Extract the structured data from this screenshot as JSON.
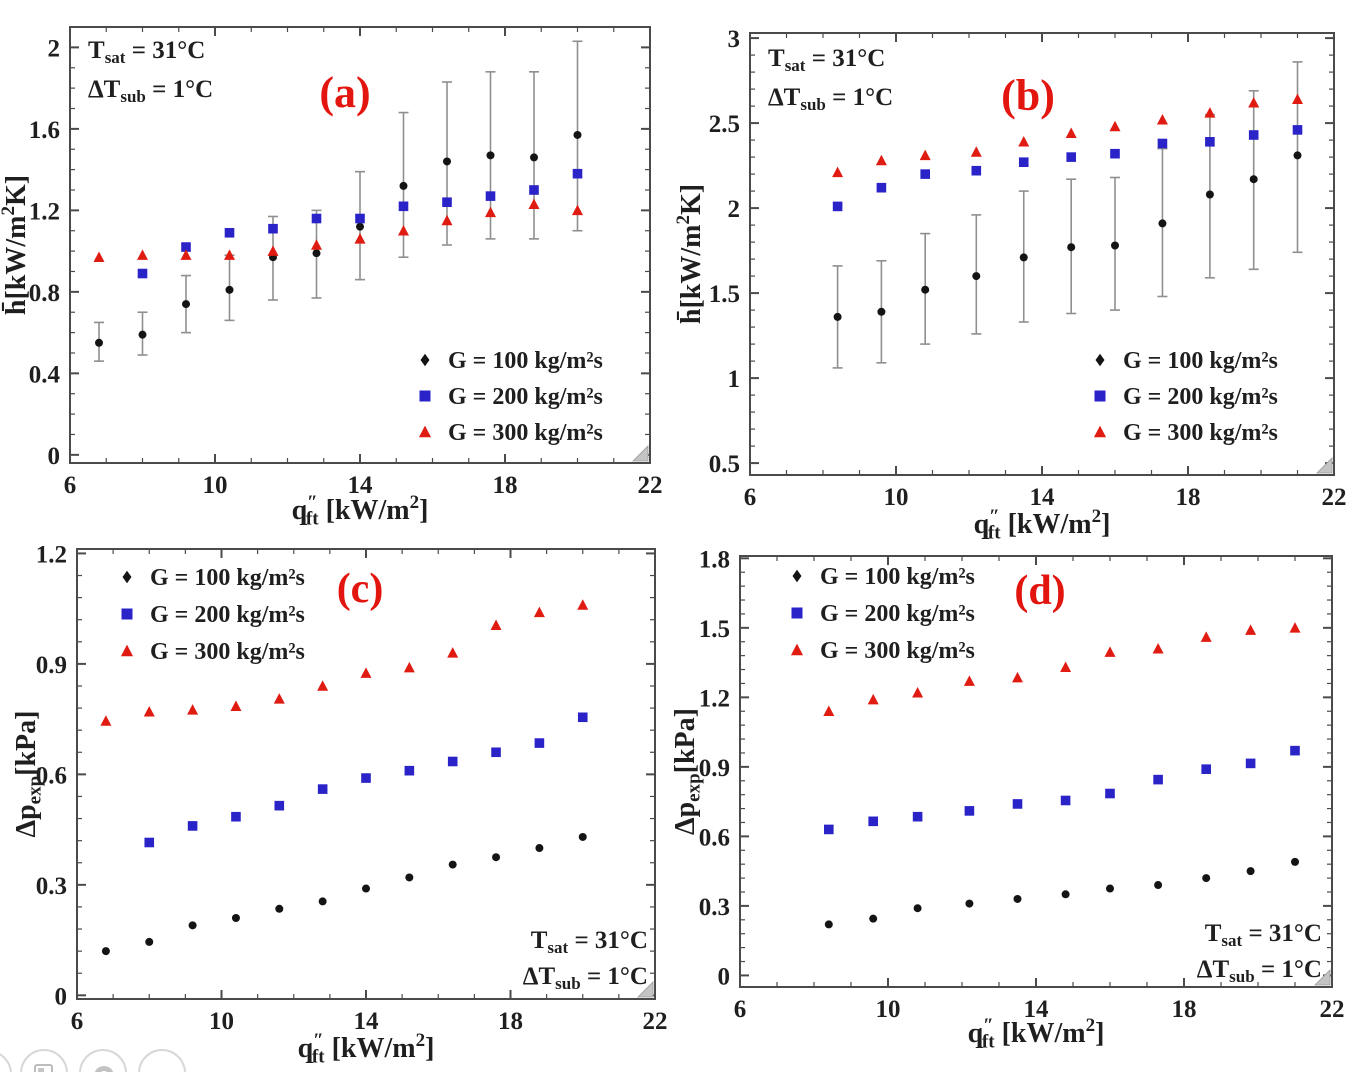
{
  "page": {
    "background": "#ffffff"
  },
  "colors": {
    "axis": "#4a4a4a",
    "text": "#1f1f1f",
    "panel_label": "#e3150f",
    "error_bar": "#8f8f8f",
    "g100": "#141414",
    "g200": "#2a23c8",
    "g300": "#e01b12",
    "corner_triangle_fill": "#c4c4c4",
    "corner_triangle_edge": "#9a9a9a"
  },
  "overlay_toolbar": {
    "buttons": [
      {
        "name": "partial-button"
      },
      {
        "name": "camera-button"
      },
      {
        "name": "arc-button"
      },
      {
        "name": "blank-button"
      }
    ]
  },
  "chart_data": [
    {
      "id": "a",
      "type": "scatter",
      "panel_label": "(a)",
      "annotations": [
        "T_(sat) = 31°C",
        "ΔT_(sub) = 1°C"
      ],
      "annotation_pos": "top-left",
      "xlabel": "q^{″}_(ft) [kW/m^{2}]",
      "ylabel": "h̄[kW/m^{2}K]",
      "xlim": [
        6,
        22
      ],
      "ylim": [
        -0.04,
        2.1
      ],
      "grid": false,
      "legend_pos": "bottom-right",
      "xticks": {
        "values": [
          6,
          10,
          14,
          18,
          22
        ],
        "labels": [
          "6",
          "10",
          "14",
          "18",
          "22"
        ],
        "minor_step": 1
      },
      "yticks": {
        "values": [
          0,
          0.4,
          0.8,
          1.2,
          1.6,
          2
        ],
        "labels": [
          "0",
          "0.4",
          "0.8",
          "1.2",
          "1.6",
          "2"
        ],
        "minor_step": 0.1
      },
      "series": [
        {
          "name": "G = 100 kg/m²s",
          "marker": "diamond",
          "color": "#141414",
          "x": [
            6.8,
            8.0,
            9.2,
            10.4,
            11.6,
            12.8,
            14.0,
            15.2,
            16.4,
            17.6,
            18.8,
            20.0
          ],
          "y": [
            0.55,
            0.59,
            0.74,
            0.81,
            0.97,
            0.99,
            1.12,
            1.32,
            1.44,
            1.47,
            1.46,
            1.57
          ],
          "err_lo": [
            0.46,
            0.49,
            0.6,
            0.66,
            0.76,
            0.77,
            0.86,
            0.97,
            1.03,
            1.06,
            1.06,
            1.1
          ],
          "err_hi": [
            0.65,
            0.7,
            0.88,
            0.98,
            1.17,
            1.2,
            1.39,
            1.68,
            1.83,
            1.88,
            1.88,
            2.03
          ]
        },
        {
          "name": "G = 200 kg/m²s",
          "marker": "square",
          "color": "#2a23c8",
          "x": [
            8.0,
            9.2,
            10.4,
            11.6,
            12.8,
            14.0,
            15.2,
            16.4,
            17.6,
            18.8,
            20.0
          ],
          "y": [
            0.89,
            1.02,
            1.09,
            1.11,
            1.16,
            1.16,
            1.22,
            1.24,
            1.27,
            1.3,
            1.38
          ]
        },
        {
          "name": "G = 300 kg/m²s",
          "marker": "triangle",
          "color": "#e01b12",
          "x": [
            6.8,
            8.0,
            9.2,
            10.4,
            11.6,
            12.8,
            14.0,
            15.2,
            16.4,
            17.6,
            18.8,
            20.0
          ],
          "y": [
            0.97,
            0.98,
            0.98,
            0.98,
            1.0,
            1.03,
            1.06,
            1.1,
            1.15,
            1.19,
            1.23,
            1.2
          ]
        }
      ]
    },
    {
      "id": "b",
      "type": "scatter",
      "panel_label": "(b)",
      "annotations": [
        "T_(sat) = 31°C",
        "ΔT_(sub) = 1°C"
      ],
      "annotation_pos": "top-left",
      "xlabel": "q^{″}_(ft) [kW/m^{2}]",
      "ylabel": "h̄[kW/m^{2}K]",
      "xlim": [
        6,
        22
      ],
      "ylim": [
        0.43,
        3.03
      ],
      "grid": false,
      "legend_pos": "bottom-right",
      "xticks": {
        "values": [
          6,
          10,
          14,
          18,
          22
        ],
        "labels": [
          "6",
          "10",
          "14",
          "18",
          "22"
        ],
        "minor_step": 1
      },
      "yticks": {
        "values": [
          0.5,
          1,
          1.5,
          2,
          2.5,
          3
        ],
        "labels": [
          "0.5",
          "1",
          "1.5",
          "2",
          "2.5",
          "3"
        ],
        "minor_step": 0.1
      },
      "series": [
        {
          "name": "G = 100 kg/m²s",
          "marker": "diamond",
          "color": "#141414",
          "x": [
            8.4,
            9.6,
            10.8,
            12.2,
            13.5,
            14.8,
            16.0,
            17.3,
            18.6,
            19.8,
            21.0
          ],
          "y": [
            1.36,
            1.39,
            1.52,
            1.6,
            1.71,
            1.77,
            1.78,
            1.91,
            2.08,
            2.17,
            2.31
          ],
          "err_lo": [
            1.06,
            1.09,
            1.2,
            1.26,
            1.33,
            1.38,
            1.4,
            1.48,
            1.59,
            1.64,
            1.74
          ],
          "err_hi": [
            1.66,
            1.69,
            1.85,
            1.96,
            2.1,
            2.17,
            2.18,
            2.35,
            2.55,
            2.69,
            2.86
          ]
        },
        {
          "name": "G = 200 kg/m²s",
          "marker": "square",
          "color": "#2a23c8",
          "x": [
            8.4,
            9.6,
            10.8,
            12.2,
            13.5,
            14.8,
            16.0,
            17.3,
            18.6,
            19.8,
            21.0
          ],
          "y": [
            2.01,
            2.12,
            2.2,
            2.22,
            2.27,
            2.3,
            2.32,
            2.38,
            2.39,
            2.43,
            2.46
          ]
        },
        {
          "name": "G = 300 kg/m²s",
          "marker": "triangle",
          "color": "#e01b12",
          "x": [
            8.4,
            9.6,
            10.8,
            12.2,
            13.5,
            14.8,
            16.0,
            17.3,
            18.6,
            19.8,
            21.0
          ],
          "y": [
            2.21,
            2.28,
            2.31,
            2.33,
            2.39,
            2.44,
            2.48,
            2.52,
            2.56,
            2.62,
            2.64
          ]
        }
      ]
    },
    {
      "id": "c",
      "type": "scatter",
      "panel_label": "(c)",
      "annotations": [
        "T_(sat) = 31°C",
        "ΔT_(sub) = 1°C"
      ],
      "annotation_pos": "bottom-right",
      "xlabel": "q^{″}_(ft) [kW/m^{2}]",
      "ylabel": "Δp_(exp)[kPa]",
      "xlim": [
        6,
        22
      ],
      "ylim": [
        -0.01,
        1.212
      ],
      "grid": false,
      "legend_pos": "top-left",
      "xticks": {
        "values": [
          6,
          10,
          14,
          18,
          22
        ],
        "labels": [
          "6",
          "10",
          "14",
          "18",
          "22"
        ],
        "minor_step": 1
      },
      "yticks": {
        "values": [
          0,
          0.3,
          0.6,
          0.9,
          1.2
        ],
        "labels": [
          "0",
          "0.3",
          "0.6",
          "0.9",
          "1.2"
        ],
        "minor_step": 0.06
      },
      "series": [
        {
          "name": "G = 100 kg/m²s",
          "marker": "diamond",
          "color": "#141414",
          "x": [
            6.8,
            8.0,
            9.2,
            10.4,
            11.6,
            12.8,
            14.0,
            15.2,
            16.4,
            17.6,
            18.8,
            20.0
          ],
          "y": [
            0.12,
            0.145,
            0.19,
            0.21,
            0.235,
            0.255,
            0.29,
            0.32,
            0.355,
            0.375,
            0.4,
            0.43
          ]
        },
        {
          "name": "G = 200 kg/m²s",
          "marker": "square",
          "color": "#2a23c8",
          "x": [
            8.0,
            9.2,
            10.4,
            11.6,
            12.8,
            14.0,
            15.2,
            16.4,
            17.6,
            18.8,
            20.0
          ],
          "y": [
            0.415,
            0.46,
            0.485,
            0.515,
            0.56,
            0.59,
            0.61,
            0.635,
            0.66,
            0.685,
            0.755
          ]
        },
        {
          "name": "G = 300 kg/m²s",
          "marker": "triangle",
          "color": "#e01b12",
          "x": [
            6.8,
            8.0,
            9.2,
            10.4,
            11.6,
            12.8,
            14.0,
            15.2,
            16.4,
            17.6,
            18.8,
            20.0
          ],
          "y": [
            0.745,
            0.77,
            0.775,
            0.785,
            0.805,
            0.84,
            0.875,
            0.89,
            0.93,
            1.005,
            1.04,
            1.06
          ]
        }
      ]
    },
    {
      "id": "d",
      "type": "scatter",
      "panel_label": "(d)",
      "annotations": [
        "T_(sat) = 31°C",
        "ΔT_(sub) = 1°C"
      ],
      "annotation_pos": "bottom-right",
      "xlabel": "q^{″}_(ft) [kW/m^{2}]",
      "ylabel": "Δp_(exp)[kPa]",
      "xlim": [
        6,
        22
      ],
      "ylim": [
        -0.05,
        1.81
      ],
      "grid": false,
      "legend_pos": "top-left",
      "xticks": {
        "values": [
          6,
          10,
          14,
          18,
          22
        ],
        "labels": [
          "6",
          "10",
          "14",
          "18",
          "22"
        ],
        "minor_step": 1
      },
      "yticks": {
        "values": [
          0,
          0.3,
          0.6,
          0.9,
          1.2,
          1.5,
          1.8
        ],
        "labels": [
          "0",
          "0.3",
          "0.6",
          "0.9",
          "1.2",
          "1.5",
          "1.8"
        ],
        "minor_step": 0.06
      },
      "series": [
        {
          "name": "G = 100 kg/m²s",
          "marker": "diamond",
          "color": "#141414",
          "x": [
            8.4,
            9.6,
            10.8,
            12.2,
            13.5,
            14.8,
            16.0,
            17.3,
            18.6,
            19.8,
            21.0
          ],
          "y": [
            0.22,
            0.245,
            0.29,
            0.31,
            0.33,
            0.35,
            0.375,
            0.39,
            0.42,
            0.45,
            0.49
          ]
        },
        {
          "name": "G = 200 kg/m²s",
          "marker": "square",
          "color": "#2a23c8",
          "x": [
            8.4,
            9.6,
            10.8,
            12.2,
            13.5,
            14.8,
            16.0,
            17.3,
            18.6,
            19.8,
            21.0
          ],
          "y": [
            0.63,
            0.665,
            0.685,
            0.71,
            0.74,
            0.755,
            0.785,
            0.845,
            0.89,
            0.915,
            0.97
          ]
        },
        {
          "name": "G = 300 kg/m²s",
          "marker": "triangle",
          "color": "#e01b12",
          "x": [
            8.4,
            9.6,
            10.8,
            12.2,
            13.5,
            14.8,
            16.0,
            17.3,
            18.6,
            19.8,
            21.0
          ],
          "y": [
            1.14,
            1.19,
            1.22,
            1.27,
            1.285,
            1.33,
            1.395,
            1.41,
            1.46,
            1.49,
            1.5
          ]
        }
      ]
    }
  ]
}
